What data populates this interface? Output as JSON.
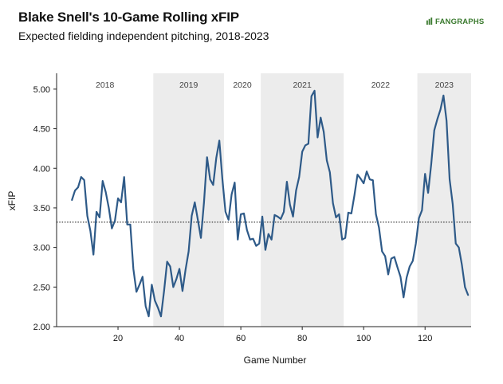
{
  "header": {
    "title": "Blake Snell's 10-Game Rolling xFIP",
    "subtitle": "Expected fielding independent pitching, 2018-2023",
    "logo_text": "FANGRAPHS",
    "logo_color": "#3a7a2e"
  },
  "chart_data": {
    "type": "line",
    "title": "Blake Snell's 10-Game Rolling xFIP",
    "subtitle": "Expected fielding independent pitching, 2018-2023",
    "xlabel": "Game Number",
    "ylabel": "xFIP",
    "xlim": [
      0,
      135
    ],
    "ylim": [
      2.0,
      5.2
    ],
    "x_ticks": [
      20,
      40,
      60,
      80,
      100,
      120
    ],
    "y_ticks": [
      2.0,
      2.5,
      3.0,
      3.5,
      4.0,
      4.5,
      5.0
    ],
    "y_tick_labels": [
      "2.00",
      "2.50",
      "3.00",
      "3.50",
      "4.00",
      "4.50",
      "5.00"
    ],
    "line_color": "#2e5a88",
    "reference_line": {
      "y": 3.32,
      "style": "dotted"
    },
    "seasons": [
      {
        "label": "2018",
        "start": 0,
        "end": 31.5,
        "shaded": false
      },
      {
        "label": "2019",
        "start": 31.5,
        "end": 54.5,
        "shaded": true
      },
      {
        "label": "2020",
        "start": 54.5,
        "end": 66.5,
        "shaded": false
      },
      {
        "label": "2021",
        "start": 66.5,
        "end": 93.5,
        "shaded": true
      },
      {
        "label": "2022",
        "start": 93.5,
        "end": 117.5,
        "shaded": false
      },
      {
        "label": "2023",
        "start": 117.5,
        "end": 135,
        "shaded": true
      }
    ],
    "shade_color": "#ececec",
    "series": [
      {
        "x": [
          5,
          6,
          7,
          8,
          9,
          10,
          11,
          12,
          13,
          14,
          15,
          16,
          17,
          18,
          19,
          20,
          21,
          22,
          23,
          24,
          25,
          26,
          27,
          28,
          29,
          30,
          31,
          32,
          33,
          34,
          35,
          36,
          37,
          38,
          39,
          40,
          41,
          42,
          43,
          44,
          45,
          46,
          47,
          48,
          49,
          50,
          51,
          52,
          53,
          54,
          55,
          56,
          57,
          58,
          59,
          60,
          61,
          62,
          63,
          64,
          65,
          66,
          67,
          68,
          69,
          70,
          71,
          72,
          73,
          74,
          75,
          76,
          77,
          78,
          79,
          80,
          81,
          82,
          83,
          84,
          85,
          86,
          87,
          88,
          89,
          90,
          91,
          92,
          93,
          94,
          95,
          96,
          97,
          98,
          99,
          100,
          101,
          102,
          103,
          104,
          105,
          106,
          107,
          108,
          109,
          110,
          111,
          112,
          113,
          114,
          115,
          116,
          117,
          118,
          119,
          120,
          121,
          122,
          123,
          124,
          125,
          126,
          127,
          128,
          129,
          130,
          131,
          132,
          133,
          134
        ],
        "y": [
          3.6,
          3.72,
          3.76,
          3.89,
          3.85,
          3.4,
          3.21,
          2.91,
          3.45,
          3.38,
          3.84,
          3.7,
          3.5,
          3.24,
          3.34,
          3.62,
          3.57,
          3.89,
          3.29,
          3.29,
          2.73,
          2.44,
          2.53,
          2.63,
          2.26,
          2.13,
          2.53,
          2.33,
          2.24,
          2.13,
          2.45,
          2.82,
          2.76,
          2.5,
          2.6,
          2.73,
          2.45,
          2.72,
          2.95,
          3.4,
          3.57,
          3.35,
          3.12,
          3.57,
          4.14,
          3.86,
          3.79,
          4.13,
          4.35,
          3.86,
          3.45,
          3.35,
          3.67,
          3.82,
          3.1,
          3.42,
          3.43,
          3.22,
          3.1,
          3.11,
          3.02,
          3.05,
          3.39,
          2.97,
          3.17,
          3.1,
          3.41,
          3.39,
          3.36,
          3.45,
          3.83,
          3.54,
          3.39,
          3.72,
          3.89,
          4.21,
          4.29,
          4.31,
          4.91,
          4.98,
          4.39,
          4.64,
          4.46,
          4.1,
          3.95,
          3.56,
          3.38,
          3.42,
          3.1,
          3.12,
          3.44,
          3.43,
          3.66,
          3.92,
          3.87,
          3.81,
          3.96,
          3.86,
          3.85,
          3.42,
          3.25,
          2.95,
          2.89,
          2.66,
          2.86,
          2.88,
          2.75,
          2.63,
          2.37,
          2.62,
          2.76,
          2.83,
          3.05,
          3.37,
          3.47,
          3.93,
          3.69,
          4.05,
          4.48,
          4.62,
          4.74,
          4.92,
          4.6,
          3.86,
          3.55,
          3.05,
          3.0,
          2.78,
          2.5,
          2.4
        ]
      }
    ]
  }
}
